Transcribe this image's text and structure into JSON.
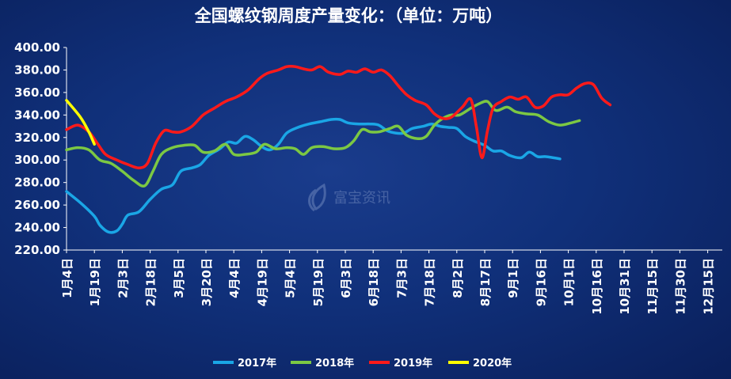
{
  "chart_data": {
    "type": "line",
    "title": "全国螺纹钢周度产量变化：（单位：万吨）",
    "ylim": [
      220,
      400
    ],
    "yticks": [
      "220.00",
      "240.00",
      "260.00",
      "280.00",
      "300.00",
      "320.00",
      "340.00",
      "360.00",
      "380.00",
      "400.00"
    ],
    "categories": [
      "1月4日",
      "1月19日",
      "2月3日",
      "2月18日",
      "3月5日",
      "3月20日",
      "4月4日",
      "4月19日",
      "5月4日",
      "5月19日",
      "6月3日",
      "6月18日",
      "7月3日",
      "7月18日",
      "8月2日",
      "8月17日",
      "9月1日",
      "9月16日",
      "10月1日",
      "10月16日",
      "10月31日",
      "11月15日",
      "11月30日",
      "12月15日"
    ],
    "legend_position": "bottom",
    "series": [
      {
        "name": "2017年",
        "color": "#1aa6e6",
        "points": [
          [
            0,
            272
          ],
          [
            0.5,
            262
          ],
          [
            1,
            250
          ],
          [
            1.2,
            242
          ],
          [
            1.5,
            236
          ],
          [
            1.8,
            237
          ],
          [
            2.0,
            243
          ],
          [
            2.2,
            251
          ],
          [
            2.6,
            254
          ],
          [
            3.0,
            265
          ],
          [
            3.4,
            274
          ],
          [
            3.8,
            278
          ],
          [
            4.1,
            290
          ],
          [
            4.5,
            293
          ],
          [
            4.8,
            296
          ],
          [
            5.1,
            304
          ],
          [
            5.5,
            310
          ],
          [
            5.8,
            316
          ],
          [
            6.1,
            315
          ],
          [
            6.4,
            321
          ],
          [
            6.7,
            318
          ],
          [
            7.0,
            312
          ],
          [
            7.3,
            309
          ],
          [
            7.6,
            314
          ],
          [
            7.9,
            324
          ],
          [
            8.3,
            329
          ],
          [
            8.7,
            332
          ],
          [
            9.1,
            334
          ],
          [
            9.5,
            336
          ],
          [
            9.8,
            336
          ],
          [
            10.1,
            333
          ],
          [
            10.5,
            332
          ],
          [
            10.9,
            332
          ],
          [
            11.2,
            331
          ],
          [
            11.5,
            326
          ],
          [
            11.8,
            324
          ],
          [
            12.1,
            324
          ],
          [
            12.4,
            328
          ],
          [
            12.8,
            330
          ],
          [
            13.1,
            332
          ],
          [
            13.4,
            330
          ],
          [
            13.7,
            329
          ],
          [
            14.0,
            328
          ],
          [
            14.3,
            321
          ],
          [
            14.6,
            317
          ],
          [
            15.0,
            313
          ],
          [
            15.3,
            308
          ],
          [
            15.6,
            308
          ],
          [
            15.9,
            304
          ],
          [
            16.3,
            302
          ],
          [
            16.6,
            307
          ],
          [
            16.9,
            303
          ],
          [
            17.2,
            303
          ],
          [
            17.7,
            301
          ]
        ]
      },
      {
        "name": "2018年",
        "color": "#7cc843",
        "points": [
          [
            0,
            309
          ],
          [
            0.4,
            311
          ],
          [
            0.8,
            309
          ],
          [
            1.2,
            300
          ],
          [
            1.6,
            297
          ],
          [
            2.0,
            290
          ],
          [
            2.4,
            282
          ],
          [
            2.8,
            277
          ],
          [
            3.1,
            290
          ],
          [
            3.4,
            305
          ],
          [
            3.8,
            311
          ],
          [
            4.2,
            313
          ],
          [
            4.6,
            313
          ],
          [
            4.9,
            307
          ],
          [
            5.3,
            308
          ],
          [
            5.7,
            314
          ],
          [
            6.0,
            305
          ],
          [
            6.4,
            305
          ],
          [
            6.8,
            307
          ],
          [
            7.1,
            314
          ],
          [
            7.5,
            310
          ],
          [
            7.9,
            311
          ],
          [
            8.2,
            310
          ],
          [
            8.5,
            305
          ],
          [
            8.8,
            311
          ],
          [
            9.2,
            312
          ],
          [
            9.6,
            310
          ],
          [
            10.0,
            311
          ],
          [
            10.3,
            317
          ],
          [
            10.6,
            327
          ],
          [
            10.9,
            325
          ],
          [
            11.2,
            325
          ],
          [
            11.6,
            328
          ],
          [
            11.9,
            330
          ],
          [
            12.2,
            322
          ],
          [
            12.6,
            319
          ],
          [
            12.9,
            321
          ],
          [
            13.2,
            331
          ],
          [
            13.5,
            337
          ],
          [
            13.8,
            340
          ],
          [
            14.1,
            340
          ],
          [
            14.5,
            346
          ],
          [
            14.8,
            350
          ],
          [
            15.1,
            352
          ],
          [
            15.4,
            344
          ],
          [
            15.8,
            347
          ],
          [
            16.1,
            343
          ],
          [
            16.5,
            341
          ],
          [
            16.9,
            340
          ],
          [
            17.3,
            334
          ],
          [
            17.7,
            331
          ],
          [
            18.1,
            333
          ],
          [
            18.4,
            335
          ]
        ]
      },
      {
        "name": "2019年",
        "color": "#ff1a1a",
        "points": [
          [
            0,
            327
          ],
          [
            0.4,
            331
          ],
          [
            0.8,
            325
          ],
          [
            1.1,
            315
          ],
          [
            1.4,
            305
          ],
          [
            1.8,
            300
          ],
          [
            2.2,
            296
          ],
          [
            2.6,
            293
          ],
          [
            2.9,
            297
          ],
          [
            3.2,
            315
          ],
          [
            3.5,
            326
          ],
          [
            3.8,
            325
          ],
          [
            4.1,
            325
          ],
          [
            4.5,
            330
          ],
          [
            4.9,
            340
          ],
          [
            5.3,
            346
          ],
          [
            5.7,
            352
          ],
          [
            6.1,
            356
          ],
          [
            6.5,
            362
          ],
          [
            6.9,
            372
          ],
          [
            7.2,
            377
          ],
          [
            7.6,
            380
          ],
          [
            7.9,
            383
          ],
          [
            8.2,
            383
          ],
          [
            8.5,
            381
          ],
          [
            8.8,
            380
          ],
          [
            9.1,
            383
          ],
          [
            9.4,
            378
          ],
          [
            9.8,
            376
          ],
          [
            10.1,
            379
          ],
          [
            10.4,
            378
          ],
          [
            10.7,
            381
          ],
          [
            11.0,
            378
          ],
          [
            11.3,
            380
          ],
          [
            11.6,
            375
          ],
          [
            11.9,
            366
          ],
          [
            12.2,
            358
          ],
          [
            12.5,
            353
          ],
          [
            12.9,
            349
          ],
          [
            13.2,
            341
          ],
          [
            13.5,
            337
          ],
          [
            13.8,
            338
          ],
          [
            14.2,
            347
          ],
          [
            14.5,
            354
          ],
          [
            14.7,
            330
          ],
          [
            14.9,
            302
          ],
          [
            15.1,
            326
          ],
          [
            15.3,
            346
          ],
          [
            15.6,
            352
          ],
          [
            15.9,
            356
          ],
          [
            16.2,
            354
          ],
          [
            16.5,
            356
          ],
          [
            16.8,
            347
          ],
          [
            17.1,
            348
          ],
          [
            17.4,
            356
          ],
          [
            17.7,
            358
          ],
          [
            18.0,
            358
          ],
          [
            18.3,
            364
          ],
          [
            18.6,
            368
          ],
          [
            18.9,
            367
          ],
          [
            19.2,
            355
          ],
          [
            19.5,
            349
          ]
        ]
      },
      {
        "name": "2020年",
        "color": "#ffff00",
        "points": [
          [
            0,
            353
          ],
          [
            0.5,
            338
          ],
          [
            0.8,
            325
          ],
          [
            1.0,
            314
          ]
        ]
      }
    ]
  },
  "watermark": "富宝资讯"
}
